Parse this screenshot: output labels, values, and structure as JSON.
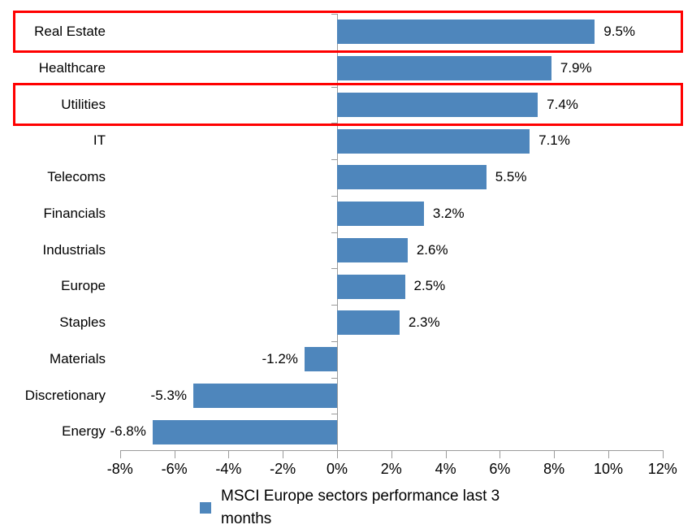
{
  "chart_data": {
    "type": "bar",
    "orientation": "horizontal",
    "categories": [
      "Real Estate",
      "Healthcare",
      "Utilities",
      "IT",
      "Telecoms",
      "Financials",
      "Industrials",
      "Europe",
      "Staples",
      "Materials",
      "Discretionary",
      "Energy"
    ],
    "values": [
      9.5,
      7.9,
      7.4,
      7.1,
      5.5,
      3.2,
      2.6,
      2.5,
      2.3,
      -1.2,
      -5.3,
      -6.8
    ],
    "value_labels": [
      "9.5%",
      "7.9%",
      "7.4%",
      "7.1%",
      "5.5%",
      "3.2%",
      "2.6%",
      "2.5%",
      "2.3%",
      "-1.2%",
      "-5.3%",
      "-6.8%"
    ],
    "xlim": [
      -8,
      12
    ],
    "x_tick_values": [
      -8,
      -6,
      -4,
      -2,
      0,
      2,
      4,
      6,
      8,
      10,
      12
    ],
    "x_tick_labels": [
      "-8%",
      "-6%",
      "-4%",
      "-2%",
      "0%",
      "2%",
      "4%",
      "6%",
      "8%",
      "10%",
      "12%"
    ],
    "grid": false,
    "bar_color": "#4E86BC",
    "axis_color": "#9B9B9B",
    "legend": {
      "label": "MSCI Europe sectors performance last 3 months",
      "marker_color": "#4E86BC",
      "position": "bottom-center"
    },
    "highlight_boxes": {
      "color": "#FF0000",
      "categories": [
        "Real Estate",
        "Utilities"
      ]
    }
  }
}
